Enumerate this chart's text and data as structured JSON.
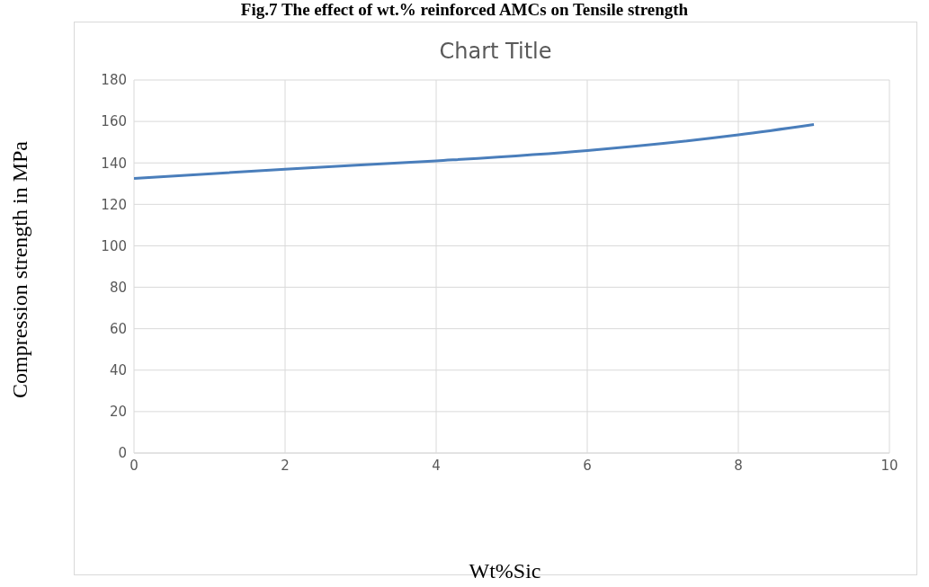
{
  "chart_data": {
    "type": "line",
    "title": "Fig.7 The effect of wt.% reinforced AMCs on Tensile strength",
    "subtitle": "Chart Title",
    "xlabel": "Wt%Sic",
    "ylabel": "Compression strength in MPa",
    "x": [
      0,
      2,
      4,
      6,
      8,
      9
    ],
    "series": [
      {
        "color": "#4a7ebb",
        "values": [
          132.5,
          137,
          141,
          146,
          153.5,
          158.5
        ]
      }
    ],
    "xlim": [
      0,
      10
    ],
    "xticks": [
      0,
      2,
      4,
      6,
      8,
      10
    ],
    "ylim": [
      0,
      180
    ],
    "yticks": [
      0,
      20,
      40,
      60,
      80,
      100,
      120,
      140,
      160,
      180
    ],
    "grid": true,
    "legend": false,
    "marker": "none",
    "line_style": "solid"
  }
}
